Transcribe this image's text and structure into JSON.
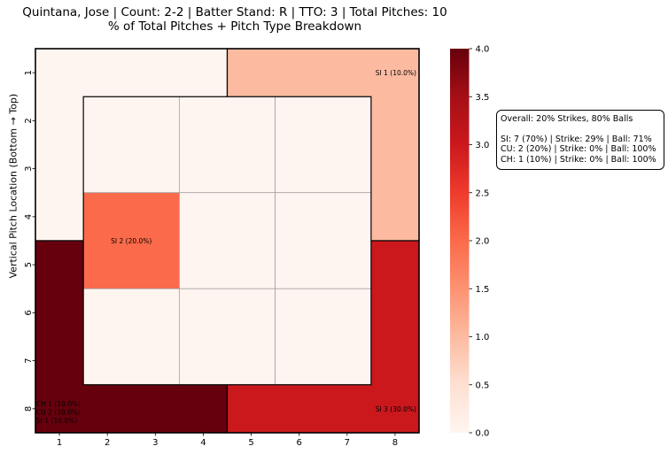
{
  "chart_data": {
    "type": "heatmap",
    "title_line1": "Quintana, Jose | Count: 2-2 | Batter Stand: R | TTO: 3 | Total Pitches: 10",
    "title_line2": "% of Total Pitches + Pitch Type Breakdown",
    "ylabel": "Vertical Pitch Location (Bottom → Top)",
    "xlabel": "",
    "x_ticks": [
      "1",
      "2",
      "3",
      "4",
      "5",
      "6",
      "7",
      "8"
    ],
    "y_ticks": [
      "1",
      "2",
      "3",
      "4",
      "5",
      "6",
      "7",
      "8"
    ],
    "colorbar": {
      "colormap": "Reds",
      "min": 0.0,
      "max": 4.0,
      "ticks": [
        "0.0",
        "0.5",
        "1.0",
        "1.5",
        "2.0",
        "2.5",
        "3.0",
        "3.5",
        "4.0"
      ]
    },
    "zones": [
      {
        "name": "top-left-shadow",
        "value": 0,
        "label": ""
      },
      {
        "name": "top-right-shadow",
        "value": 1,
        "label": "SI 1 (10.0%)"
      },
      {
        "name": "bottom-left-shadow",
        "value": 4,
        "label_lines": [
          "CH 1 (10.0%)",
          "CU 2 (20.0%)",
          "SI 1 (10.0%)"
        ]
      },
      {
        "name": "bottom-right-shadow",
        "value": 3,
        "label": "SI 3 (30.0%)"
      }
    ],
    "inner_zone": [
      [
        0,
        0,
        0
      ],
      [
        2,
        0,
        0
      ],
      [
        0,
        0,
        0
      ]
    ],
    "inner_labels": [
      [
        "",
        "",
        ""
      ],
      [
        "SI 2 (20.0%)",
        "",
        ""
      ],
      [
        "",
        "",
        ""
      ]
    ]
  },
  "summary": {
    "overall": "Overall: 20% Strikes, 80% Balls",
    "lines": [
      "SI: 7 (70%) | Strike: 29% | Ball: 71%",
      "CU: 2 (20%) | Strike: 0% | Ball: 100%",
      "CH: 1 (10%) | Strike: 0% | Ball: 100%"
    ]
  }
}
